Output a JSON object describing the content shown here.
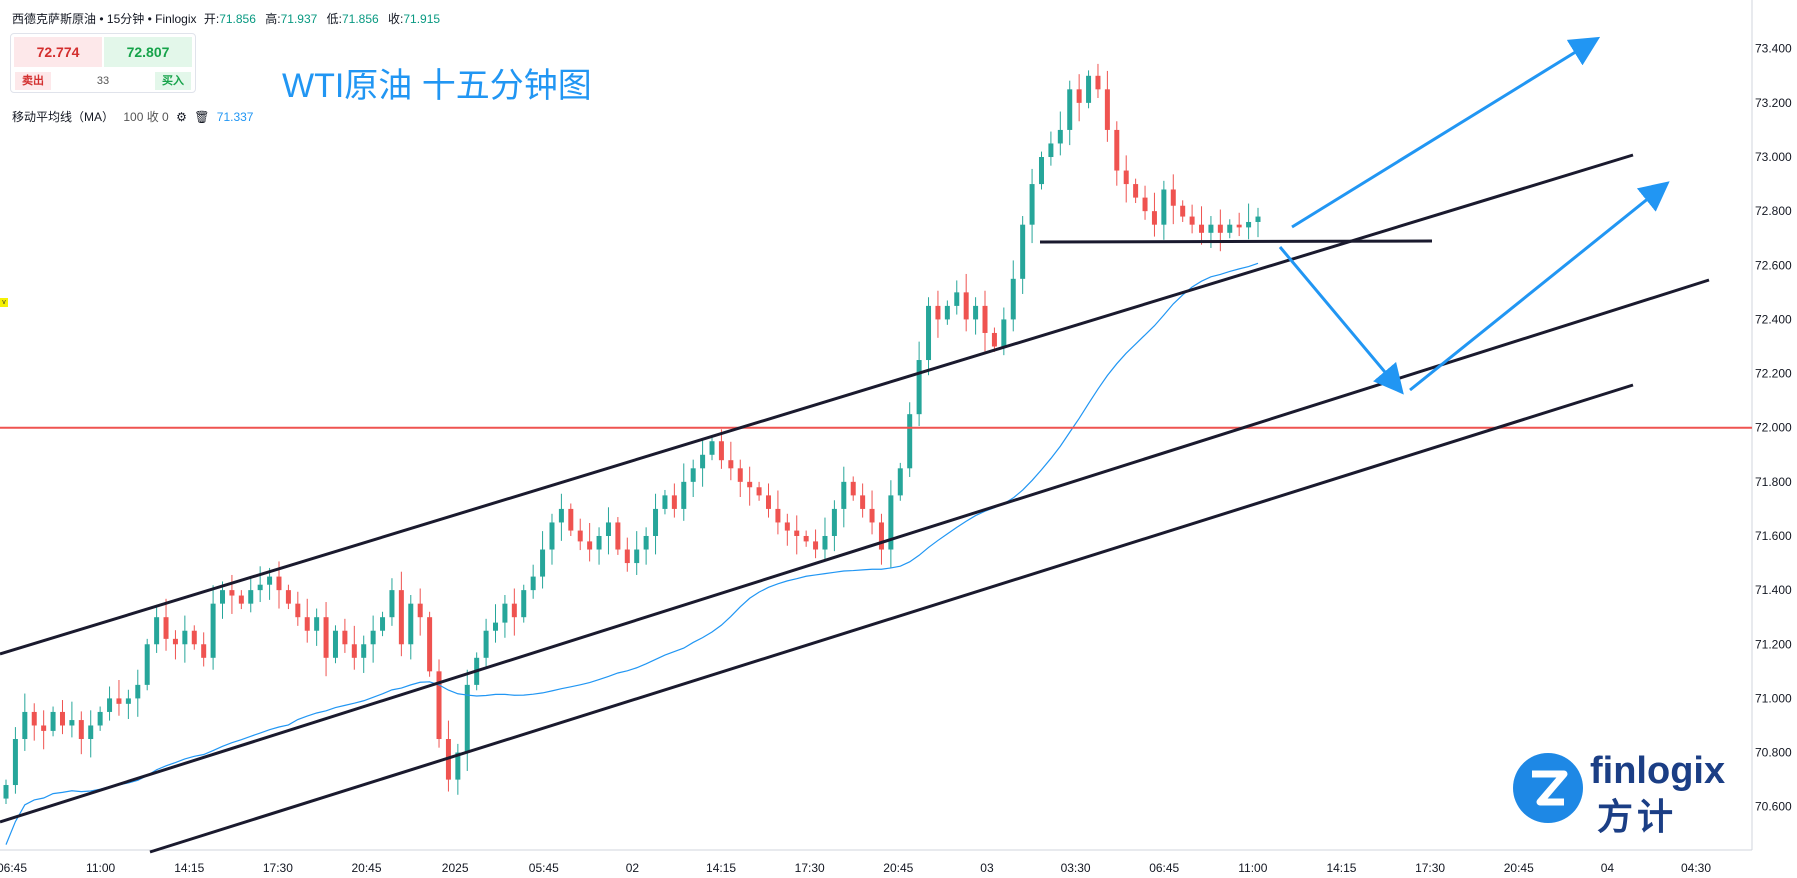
{
  "header": {
    "symbol": "西德克萨斯原油",
    "sep": "•",
    "timeframe": "15分钟",
    "source": "Finlogix",
    "open_label": "开:",
    "open": "71.856",
    "high_label": "高:",
    "high": "71.937",
    "low_label": "低:",
    "low": "71.856",
    "close_label": "收:",
    "close": "71.915"
  },
  "trade": {
    "sell_price": "72.774",
    "buy_price": "72.807",
    "spread": "33",
    "sell_label": "卖出",
    "buy_label": "买入"
  },
  "title": "WTI原油 十五分钟图",
  "indicator": {
    "name": "移动平均线（MA）",
    "params": "100 收 0",
    "value": "71.337",
    "color": "#2196f3"
  },
  "marker": "v",
  "logo": {
    "text": "finlogix",
    "subtext": "方计",
    "color": "#1b3e85",
    "icon": "finlogix-z-logo-icon"
  },
  "colors": {
    "up": "#26a69a",
    "down": "#ef5350",
    "ma": "#2196f3",
    "support": "#ef5350",
    "channel": "#1a1a2e",
    "arrow": "#2196f3"
  },
  "chart_data": {
    "type": "candlestick",
    "ylim": [
      70.44,
      73.58
    ],
    "ytick_labels": [
      "73.400",
      "73.200",
      "73.000",
      "72.800",
      "72.600",
      "72.400",
      "72.200",
      "72.000",
      "71.800",
      "71.600",
      "71.400",
      "71.200",
      "71.000",
      "70.800",
      "70.600"
    ],
    "xtick_labels": [
      "06:45",
      "11:00",
      "14:15",
      "17:30",
      "20:45",
      "2025",
      "05:45",
      "02",
      "14:15",
      "17:30",
      "20:45",
      "03",
      "03:30",
      "06:45",
      "11:00",
      "14:15",
      "17:30",
      "20:45",
      "04",
      "04:30"
    ],
    "horizontal_level": 72.0,
    "series": [
      {
        "values": [
          70.68,
          70.85,
          70.95,
          70.9,
          70.88,
          70.95,
          70.9,
          70.92,
          70.85,
          70.9,
          70.95,
          71.0,
          70.98,
          71.0,
          71.05,
          71.2,
          71.3,
          71.22,
          71.2,
          71.25,
          71.2,
          71.15,
          71.35,
          71.4,
          71.38,
          71.35,
          71.4,
          71.42,
          71.45,
          71.4,
          71.35,
          71.3,
          71.25,
          71.3,
          71.15,
          71.25,
          71.2,
          71.15,
          71.2,
          71.25,
          71.3,
          71.4,
          71.2,
          71.35,
          71.3,
          71.1,
          70.85,
          70.7,
          70.8,
          71.05,
          71.15,
          71.25,
          71.28,
          71.35,
          71.3,
          71.4,
          71.45,
          71.55,
          71.65,
          71.7,
          71.62,
          71.58,
          71.55,
          71.6,
          71.65,
          71.55,
          71.5,
          71.55,
          71.6,
          71.7,
          71.75,
          71.7,
          71.8,
          71.85,
          71.9,
          71.95,
          71.88,
          71.85,
          71.8,
          71.78,
          71.75,
          71.7,
          71.65,
          71.62,
          71.6,
          71.58,
          71.55,
          71.6,
          71.7,
          71.8,
          71.75,
          71.7,
          71.65,
          71.55,
          71.75,
          71.85,
          72.05,
          72.25,
          72.45,
          72.4,
          72.45,
          72.5,
          72.4,
          72.45,
          72.35,
          72.3,
          72.4,
          72.55,
          72.75,
          72.9,
          73.0,
          73.05,
          73.1,
          73.25,
          73.2,
          73.3,
          73.25,
          73.1,
          72.95,
          72.9,
          72.85,
          72.8,
          72.75,
          72.88,
          72.82,
          72.78,
          72.75,
          72.72,
          72.75,
          72.72,
          72.75,
          72.74,
          72.76,
          72.78
        ]
      }
    ]
  }
}
